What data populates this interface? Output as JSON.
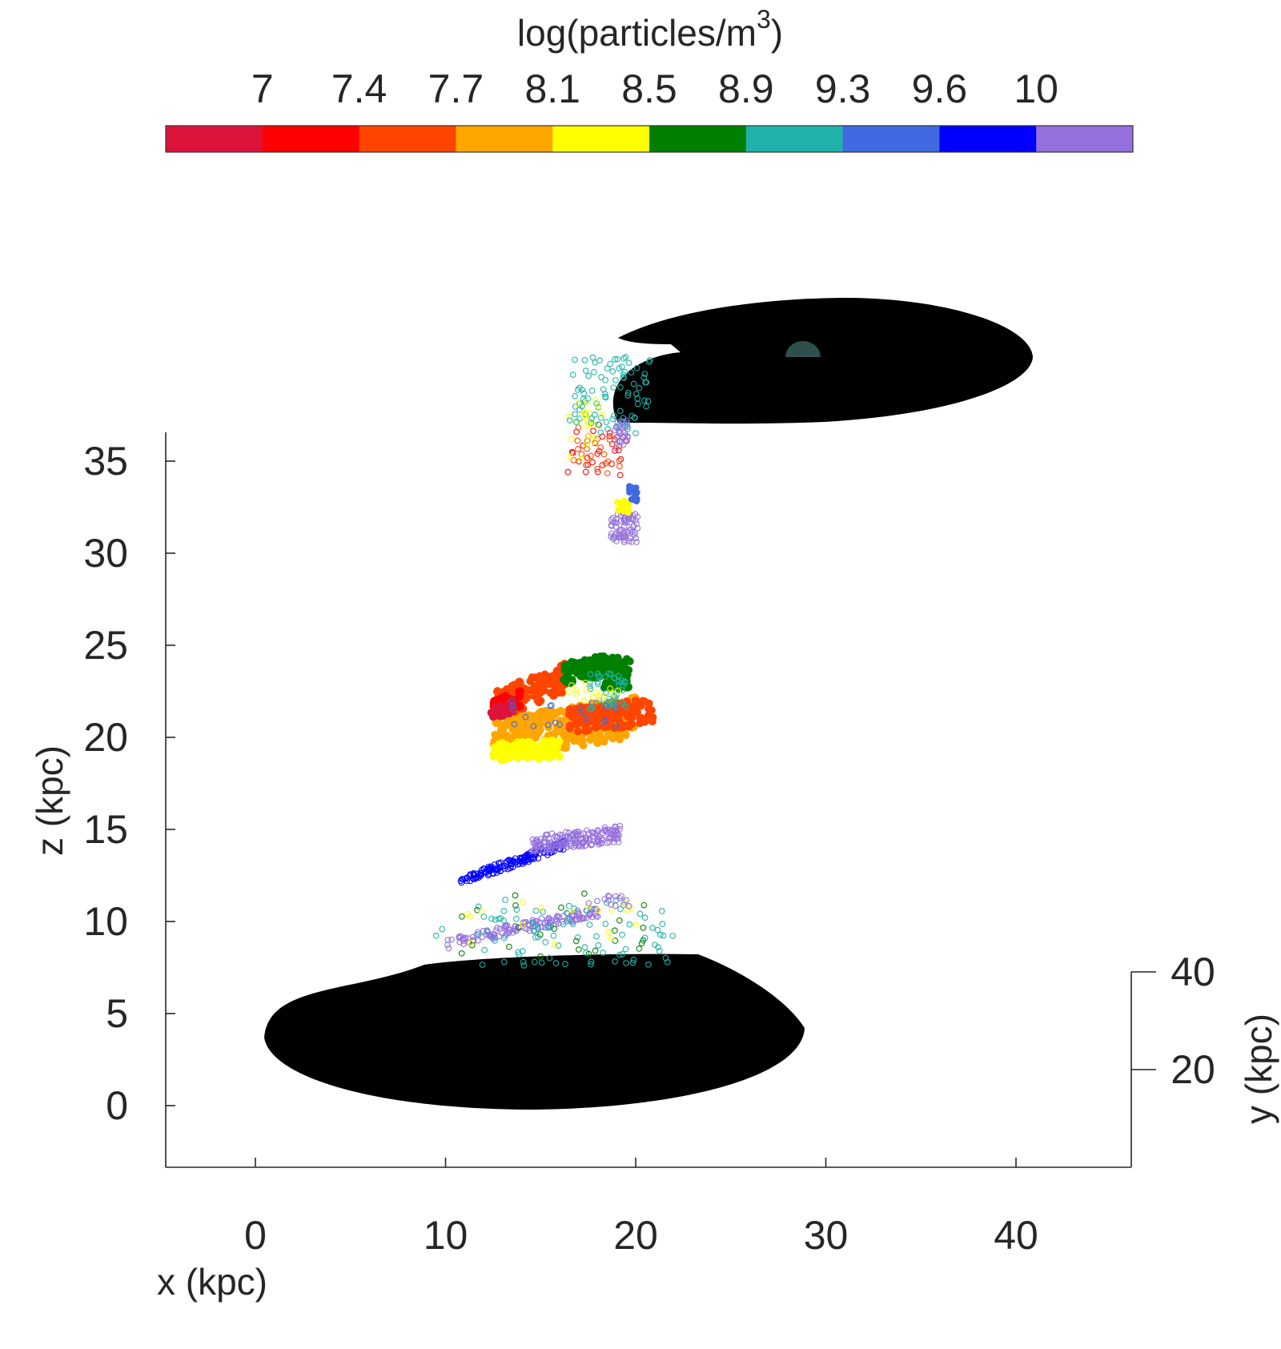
{
  "chart_data": {
    "type": "scatter",
    "title": "",
    "colorbar": {
      "label": "log(particles/m",
      "label_sup": "3",
      "label_end": ")",
      "tick_labels": [
        "7",
        "7.4",
        "7.7",
        "8.1",
        "8.5",
        "8.9",
        "9.3",
        "9.6",
        "10"
      ],
      "colors": [
        "#dc143c",
        "#ff0000",
        "#ff4500",
        "#ffa500",
        "#ffff00",
        "#008000",
        "#20b2aa",
        "#4169e1",
        "#0000ff",
        "#9370db"
      ]
    },
    "xlabel": "x (kpc)",
    "ylabel": "y (kpc)",
    "zlabel": "z (kpc)",
    "x_ticks": [
      "0",
      "10",
      "20",
      "30",
      "40"
    ],
    "y_ticks": [
      "20",
      "40"
    ],
    "z_ticks": [
      "0",
      "5",
      "10",
      "15",
      "20",
      "25",
      "30",
      "35"
    ],
    "xlim": [
      -5,
      46
    ],
    "zlim": [
      -3,
      37
    ],
    "grid": false,
    "legend": "none",
    "view": "3d",
    "objects": [
      {
        "name": "lower-disk",
        "color": "#000000",
        "z_center": 3.9
      },
      {
        "name": "upper-disk",
        "color": "#000000",
        "z_center": 39.3
      },
      {
        "name": "upper-bulge",
        "color": "#2f4f4f"
      }
    ],
    "clusters": [
      {
        "name": "plume-bottom",
        "x_range": [
          9.5,
          22
        ],
        "z_range": [
          7.5,
          11.5
        ],
        "levels": [
          "10",
          "9.3",
          "8.9",
          "8.5"
        ]
      },
      {
        "name": "stream-15kpc",
        "x_range": [
          10.5,
          19.5
        ],
        "z_range": [
          12,
          15.5
        ],
        "levels": [
          "9.6",
          "10"
        ]
      },
      {
        "name": "bands-21kpc",
        "x_range": [
          12.5,
          21
        ],
        "z_range": [
          18.5,
          24.5
        ],
        "levels": [
          "7",
          "7.4",
          "7.7",
          "8.1",
          "8.5"
        ]
      },
      {
        "name": "arc-32kpc",
        "x_range": [
          18.5,
          20
        ],
        "z_range": [
          30.5,
          33.8
        ],
        "levels": [
          "10",
          "8.5",
          "9.6"
        ]
      },
      {
        "name": "scatter-35kpc",
        "x_range": [
          16.5,
          19.5
        ],
        "z_range": [
          34,
          38
        ],
        "levels": [
          "7",
          "7.4",
          "7.7",
          "8.5"
        ]
      },
      {
        "name": "top-trail",
        "x_range": [
          16.5,
          21
        ],
        "z_range": [
          36.5,
          41
        ],
        "levels": [
          "9.3",
          "10"
        ]
      }
    ]
  }
}
